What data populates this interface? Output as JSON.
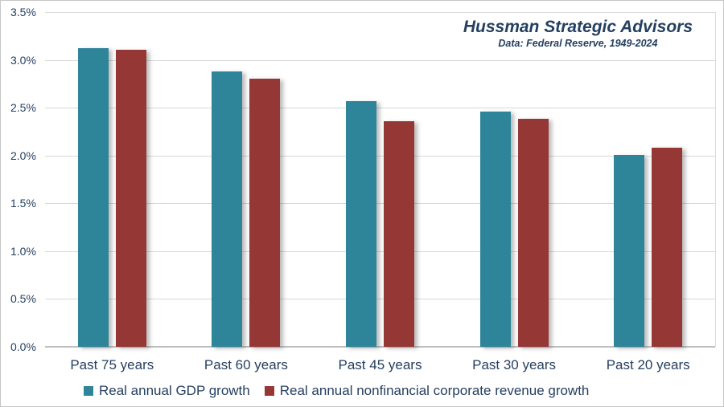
{
  "chart_data": {
    "type": "bar",
    "title": "Hussman Strategic Advisors",
    "subtitle": "Data: Federal Reserve, 1949-2024",
    "categories": [
      "Past 75 years",
      "Past 60 years",
      "Past 45 years",
      "Past 30 years",
      "Past 20 years"
    ],
    "series": [
      {
        "name": "Real annual GDP growth",
        "color": "#2E8499",
        "values": [
          3.12,
          2.88,
          2.57,
          2.46,
          2.01
        ]
      },
      {
        "name": "Real annual nonfinancial corporate revenue growth",
        "color": "#943735",
        "values": [
          3.11,
          2.8,
          2.36,
          2.38,
          2.08
        ]
      }
    ],
    "xlabel": "",
    "ylabel": "",
    "ylim": [
      0,
      3.5
    ],
    "ytick_step": 0.5,
    "yticks": [
      0.0,
      0.5,
      1.0,
      1.5,
      2.0,
      2.5,
      3.0,
      3.5
    ],
    "ytick_labels": [
      "0.0%",
      "0.5%",
      "1.0%",
      "1.5%",
      "2.0%",
      "2.5%",
      "3.0%",
      "3.5%"
    ],
    "grid": true,
    "legend_position": "bottom"
  },
  "colors": {
    "text": "#243F60",
    "gridline": "#D9D9D9",
    "axis_line": "#BFBFBF",
    "background": "#FFFFFF"
  }
}
